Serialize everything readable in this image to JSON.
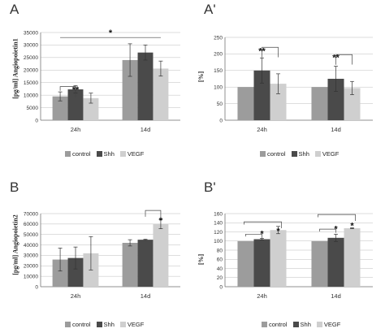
{
  "colors": {
    "control": "#9c9c9c",
    "Shh": "#4a4a4a",
    "VEGF": "#cfcfcf",
    "axis": "#777777",
    "grid": "#bdbdbd"
  },
  "chart_data": [
    {
      "panel": "A",
      "type": "bar",
      "ylabel": "[pg/ml] Angiopoietin1",
      "categories": [
        "24h",
        "14d"
      ],
      "ylim": [
        0,
        35000
      ],
      "yticks": [
        0,
        5000,
        10000,
        15000,
        20000,
        25000,
        30000,
        35000
      ],
      "series": [
        {
          "name": "control",
          "values": [
            9500,
            24000
          ],
          "errors": [
            1800,
            6500
          ]
        },
        {
          "name": "Shh",
          "values": [
            12300,
            27000
          ],
          "errors": [
            1500,
            3000
          ]
        },
        {
          "name": "VEGF",
          "values": [
            8800,
            20600
          ],
          "errors": [
            2000,
            3000
          ]
        }
      ],
      "annotations": [
        "**",
        "*"
      ],
      "grid": true,
      "legend": "bottom"
    },
    {
      "panel": "A'",
      "type": "bar",
      "ylabel": "[%]",
      "categories": [
        "24h",
        "14d"
      ],
      "ylim": [
        0,
        250
      ],
      "yticks": [
        0,
        50,
        100,
        150,
        200,
        250
      ],
      "series": [
        {
          "name": "control",
          "values": [
            100,
            100
          ],
          "errors": [
            0,
            0
          ]
        },
        {
          "name": "Shh",
          "values": [
            150,
            125
          ],
          "errors": [
            38,
            38
          ]
        },
        {
          "name": "VEGF",
          "values": [
            110,
            97
          ],
          "errors": [
            30,
            20
          ]
        }
      ],
      "annotations": [
        "**",
        "**"
      ],
      "grid": true,
      "legend": "bottom"
    },
    {
      "panel": "B",
      "type": "bar",
      "ylabel": "[pg/ml] Angiopoietin2",
      "categories": [
        "24h",
        "14d"
      ],
      "ylim": [
        0,
        70000
      ],
      "yticks": [
        0,
        10000,
        20000,
        30000,
        40000,
        50000,
        60000,
        70000
      ],
      "series": [
        {
          "name": "control",
          "values": [
            26000,
            42000
          ],
          "errors": [
            11000,
            3000
          ]
        },
        {
          "name": "Shh",
          "values": [
            27500,
            45000
          ],
          "errors": [
            10500,
            500
          ]
        },
        {
          "name": "VEGF",
          "values": [
            32000,
            60000
          ],
          "errors": [
            16000,
            4500
          ]
        }
      ],
      "annotations": [
        "*"
      ],
      "grid": true,
      "legend": "bottom"
    },
    {
      "panel": "B'",
      "type": "bar",
      "ylabel": "[%]",
      "categories": [
        "24h",
        "14d"
      ],
      "ylim": [
        0,
        160
      ],
      "yticks": [
        0,
        20,
        40,
        60,
        80,
        100,
        120,
        140,
        160
      ],
      "series": [
        {
          "name": "control",
          "values": [
            100,
            100
          ],
          "errors": [
            0,
            0
          ]
        },
        {
          "name": "Shh",
          "values": [
            104,
            107
          ],
          "errors": [
            2,
            8
          ]
        },
        {
          "name": "VEGF",
          "values": [
            124,
            128
          ],
          "errors": [
            8,
            1
          ]
        }
      ],
      "annotations": [
        "*",
        "*",
        "*",
        "*"
      ],
      "grid": true,
      "legend": "bottom"
    }
  ],
  "panels": {
    "A": {
      "letter": "A"
    },
    "A2": {
      "letter": "A'"
    },
    "B": {
      "letter": "B"
    },
    "B2": {
      "letter": "B'"
    }
  }
}
